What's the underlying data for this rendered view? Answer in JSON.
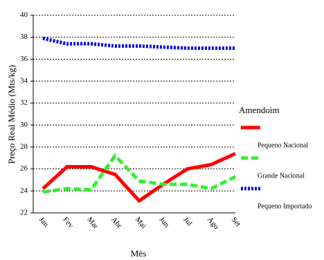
{
  "chart_data": {
    "type": "line",
    "x_label": "Mês",
    "y_label": "Preço Real Médio (Mts/kg)",
    "legend_title": "Amendoim",
    "categories": [
      "Jan",
      "Fev",
      "Mar",
      "Abr",
      "Mai",
      "Jun",
      "Jul",
      "Ago",
      "Set"
    ],
    "series": [
      {
        "name": "Pequeno Nacional",
        "color": "#ff0000",
        "style": "solid",
        "values": [
          24.2,
          26.2,
          26.2,
          25.5,
          23.1,
          24.6,
          26.0,
          26.4,
          27.4
        ]
      },
      {
        "name": "Grande Nacional",
        "color": "#33ee33",
        "style": "dashed",
        "values": [
          23.9,
          24.2,
          24.1,
          27.2,
          24.9,
          24.6,
          24.6,
          24.2,
          25.3
        ]
      },
      {
        "name": "Pequeno Importado",
        "color": "#0000ee",
        "style": "dotted",
        "values": [
          37.9,
          37.4,
          37.4,
          37.2,
          37.2,
          37.1,
          37.0,
          37.0,
          37.0
        ]
      }
    ],
    "ylim": [
      22,
      40
    ],
    "yticks": [
      22,
      24,
      26,
      28,
      30,
      32,
      34,
      36,
      38,
      40
    ],
    "grid": true
  }
}
